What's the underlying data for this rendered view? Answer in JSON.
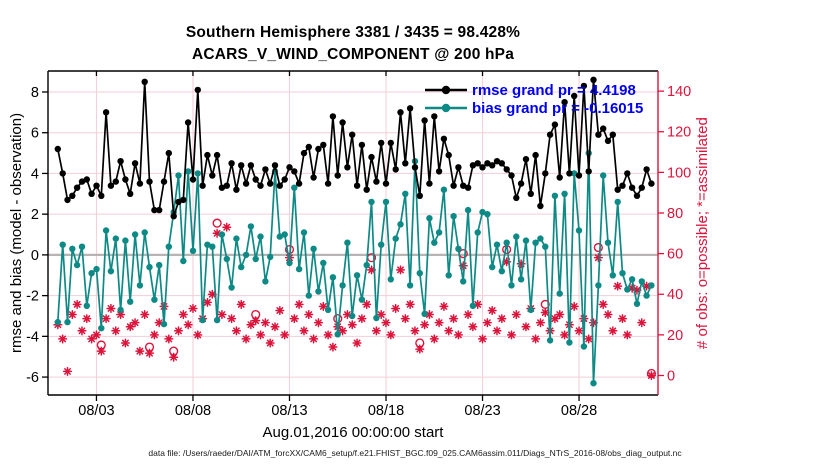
{
  "figure": {
    "title": "Southern Hemisphere 3381 / 3435 = 98.428%",
    "subtitle": "ACARS_V_WIND_COMPONENT @ 200 hPa",
    "xlabel": "Aug.01,2016 00:00:00 start",
    "ylabel_left": "rmse and bias (model - observation)",
    "ylabel_right": "# of obs: o=possible; *=assimilated",
    "caption": "data file: /Users/raeder/DAI/ATM_forcXX/CAM6_setup/f.e21.FHIST_BGC.f09_025.CAM6assim.011/Diags_NTrS_2016-08/obs_diag_output.nc"
  },
  "legend": {
    "rmse_label": "rmse grand pr = 4.4198",
    "bias_label": "bias grand pr = -0.16015"
  },
  "colors": {
    "rmse": "#000000",
    "bias": "#0d8a86",
    "obs": "#dc143c",
    "legend_text": "#0000ee",
    "grid": "#f5cdd6",
    "zero_line": "#b8b4b4",
    "axis": "#000000",
    "right_axis": "#dc143c"
  },
  "chart_data": {
    "type": "line",
    "title": "Southern Hemisphere 3381 / 3435 = 98.428%",
    "subtitle": "ACARS_V_WIND_COMPONENT @ 200 hPa",
    "xlabel": "Aug.01,2016 00:00:00 start",
    "ylabel_left": "rmse and bias (model - observation)",
    "ylabel_right": "# of obs: o=possible; *=assimilated",
    "grid": true,
    "legend_position": "top-right-inside",
    "x_start_day": 1.0,
    "x_step_days": 0.25,
    "xlim_days": [
      0.49,
      32.09
    ],
    "xticks": {
      "days": [
        3,
        8,
        13,
        18,
        23,
        28
      ],
      "labels": [
        "08/03",
        "08/08",
        "08/13",
        "08/18",
        "08/23",
        "08/28"
      ]
    },
    "ylim_left": [
      -6.88,
      9.03
    ],
    "yticks_left": [
      8,
      6,
      4,
      2,
      0,
      -2,
      -4,
      -6
    ],
    "ylim_right": [
      -9.6,
      149.9
    ],
    "yticks_right": [
      0,
      20,
      40,
      60,
      80,
      100,
      120,
      140
    ],
    "series": [
      {
        "name": "rmse",
        "grand_pr": 4.4198,
        "color": "#000000",
        "values": [
          5.2,
          4.0,
          2.7,
          2.9,
          3.3,
          3.6,
          3.7,
          3.0,
          3.4,
          2.9,
          7.0,
          3.4,
          3.6,
          4.6,
          3.7,
          3.0,
          4.5,
          3.5,
          8.5,
          3.6,
          2.2,
          2.2,
          3.6,
          5.0,
          1.9,
          2.6,
          2.7,
          6.5,
          3.7,
          8.1,
          3.4,
          4.9,
          3.9,
          4.9,
          3.3,
          3.4,
          4.5,
          3.2,
          4.4,
          3.5,
          4.4,
          3.7,
          3.4,
          4.2,
          3.5,
          4.4,
          3.4,
          3.7,
          4.3,
          4.1,
          3.5,
          5.0,
          5.3,
          3.8,
          5.2,
          5.4,
          3.5,
          6.8,
          3.9,
          6.5,
          4.3,
          5.9,
          3.4,
          5.4,
          3.2,
          4.8,
          3.6,
          5.5,
          3.5,
          5.5,
          4.2,
          7.0,
          4.5,
          7.2,
          4.3,
          2.9,
          6.6,
          3.5,
          6.8,
          4.1,
          5.7,
          4.9,
          3.4,
          4.3,
          3.4,
          3.3,
          4.4,
          4.5,
          4.3,
          4.5,
          4.4,
          4.6,
          4.5,
          4.2,
          3.9,
          2.8,
          3.5,
          4.7,
          3.0,
          4.9,
          2.4,
          4.0,
          5.9,
          6.4,
          3.8,
          7.5,
          4.0,
          7.8,
          3.9,
          8.3,
          4.1,
          8.6,
          5.9,
          6.2,
          5.6,
          5.9,
          3.2,
          3.4,
          4.0,
          3.3,
          2.9,
          3.3,
          4.2,
          3.5
        ]
      },
      {
        "name": "bias",
        "grand_pr": -0.16015,
        "color": "#0d8a86",
        "values": [
          -3.3,
          0.5,
          -3.3,
          0.3,
          -0.5,
          0.4,
          -2.5,
          -0.9,
          -0.7,
          -3.6,
          1.2,
          -0.8,
          0.8,
          -2.7,
          0.7,
          -2.3,
          1.0,
          -1.5,
          1.1,
          -0.6,
          -2.2,
          -0.5,
          -3.4,
          0.4,
          2.1,
          3.9,
          -0.3,
          4.1,
          0.2,
          4.0,
          -3.2,
          0.5,
          0.4,
          -3.2,
          1.0,
          -0.2,
          -1.6,
          0.8,
          -0.6,
          0.0,
          1.4,
          -0.2,
          0.9,
          -1.3,
          -0.1,
          4.1,
          0.9,
          1.0,
          -0.4,
          3.3,
          -0.7,
          1.1,
          -2.0,
          0.3,
          -1.8,
          -0.4,
          -2.7,
          -1.1,
          -3.9,
          -1.5,
          0.6,
          -3.0,
          -1.0,
          -2.2,
          -0.5,
          2.6,
          -3.1,
          0.5,
          2.6,
          -1.2,
          0.8,
          1.5,
          3.0,
          -1.5,
          4.6,
          -0.9,
          -2.9,
          1.8,
          0.6,
          1.1,
          3.2,
          -1.0,
          1.9,
          0.3,
          -1.3,
          2.2,
          -2.5,
          1.1,
          2.1,
          2.0,
          -0.6,
          0.5,
          -0.8,
          0.6,
          -1.5,
          0.9,
          -1.2,
          0.7,
          -2.7,
          0.6,
          0.8,
          0.4,
          -4.2,
          2.9,
          -1.9,
          3.0,
          -4.3,
          4.0,
          1.2,
          -4.5,
          5.0,
          -6.3,
          -1.5,
          3.9,
          0.6,
          -1.0,
          2.6,
          -0.9,
          -1.7,
          -1.2,
          -2.4,
          -1.3,
          -2.0,
          -1.5
        ]
      }
    ],
    "obs_counts": {
      "color": "#dc143c",
      "possible": [
        25,
        18,
        2,
        30,
        35,
        22,
        28,
        18,
        20,
        15,
        28,
        33,
        22,
        30,
        16,
        24,
        26,
        12,
        30,
        14,
        20,
        26,
        34,
        18,
        12,
        22,
        30,
        25,
        33,
        20,
        28,
        36,
        40,
        75,
        30,
        73,
        28,
        22,
        35,
        18,
        25,
        30,
        20,
        26,
        16,
        24,
        32,
        20,
        62,
        28,
        35,
        22,
        30,
        18,
        26,
        34,
        20,
        14,
        28,
        22,
        30,
        25,
        16,
        28,
        35,
        58,
        22,
        30,
        26,
        20,
        33,
        52,
        28,
        35,
        22,
        16,
        25,
        30,
        18,
        26,
        34,
        22,
        28,
        20,
        60,
        30,
        24,
        35,
        18,
        26,
        32,
        22,
        28,
        62,
        20,
        30,
        55,
        24,
        33,
        18,
        26,
        35,
        22,
        28,
        30,
        20,
        25,
        34,
        22,
        28,
        18,
        26,
        63,
        35,
        30,
        22,
        44,
        28,
        20,
        43,
        42,
        26,
        44,
        1
      ],
      "assimilated": [
        25,
        18,
        2,
        30,
        35,
        22,
        28,
        18,
        20,
        12,
        28,
        33,
        22,
        30,
        16,
        24,
        26,
        12,
        30,
        11,
        20,
        26,
        34,
        18,
        9,
        22,
        30,
        25,
        33,
        20,
        28,
        36,
        40,
        70,
        30,
        73,
        28,
        22,
        35,
        18,
        25,
        27,
        20,
        26,
        16,
        24,
        32,
        20,
        58,
        28,
        35,
        22,
        30,
        18,
        26,
        34,
        20,
        14,
        24,
        22,
        30,
        25,
        16,
        28,
        35,
        52,
        22,
        30,
        26,
        20,
        33,
        52,
        28,
        35,
        22,
        13,
        25,
        30,
        18,
        26,
        34,
        22,
        28,
        20,
        54,
        30,
        24,
        35,
        18,
        26,
        32,
        22,
        28,
        56,
        20,
        30,
        55,
        24,
        33,
        18,
        26,
        31,
        22,
        28,
        30,
        20,
        25,
        34,
        22,
        28,
        18,
        26,
        58,
        35,
        30,
        22,
        44,
        28,
        20,
        43,
        42,
        26,
        44,
        0
      ]
    }
  }
}
